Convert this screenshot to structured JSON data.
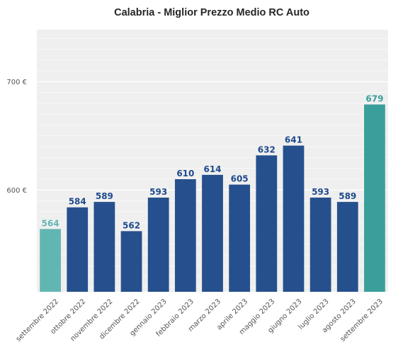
{
  "chart_data": {
    "type": "bar",
    "title": "Calabria - Miglior Prezzo Medio RC Auto",
    "xlabel": "",
    "ylabel": "",
    "categories": [
      "settembre 2022",
      "ottobre 2022",
      "novembre 2022",
      "dicembre 2022",
      "gennaio 2023",
      "febbraio 2023",
      "marzo 2023",
      "aprile 2023",
      "maggio 2023",
      "giugno 2023",
      "luglio 2023",
      "agosto 2023",
      "settembre 2023"
    ],
    "values": [
      564,
      584,
      589,
      562,
      593,
      610,
      614,
      605,
      632,
      641,
      593,
      589,
      679
    ],
    "data_labels": [
      "564",
      "584",
      "589",
      "562",
      "593",
      "610",
      "614",
      "605",
      "632",
      "641",
      "593",
      "589",
      "679"
    ],
    "ylim": [
      506,
      748
    ],
    "yticks": [
      600,
      700
    ],
    "ytick_labels": [
      "600 €",
      "700 €"
    ],
    "grid": true,
    "colors": {
      "background": "#efefef",
      "gridline": "#ffffff",
      "bar_main": "#26508d",
      "bar_first": "#62b6b2",
      "bar_last": "#3a9f9a",
      "label_main": "#1f4a8c",
      "label_first": "#62b6b2",
      "label_last": "#3a9f9a"
    }
  }
}
